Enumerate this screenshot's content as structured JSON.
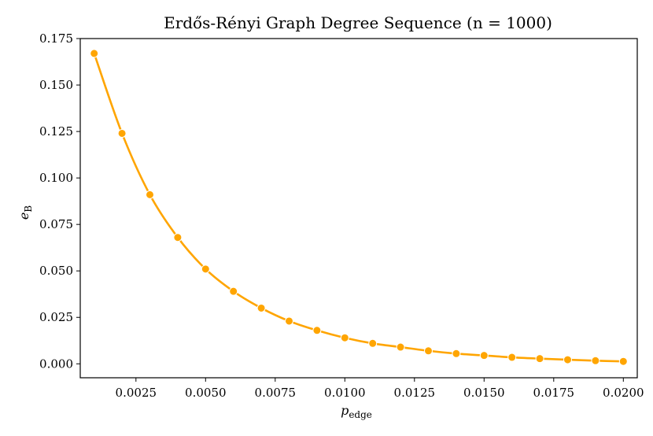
{
  "chart_data": {
    "type": "line",
    "title": "Erdős-Rényi Graph Degree Sequence (n = 1000)",
    "xlabel": "p_edge",
    "ylabel": "e_B",
    "xlim": [
      0.0005,
      0.0205
    ],
    "ylim": [
      -0.0075,
      0.175
    ],
    "xticks": [
      "0.0025",
      "0.0050",
      "0.0075",
      "0.0100",
      "0.0125",
      "0.0150",
      "0.0175",
      "0.0200"
    ],
    "yticks": [
      "0.000",
      "0.025",
      "0.050",
      "0.075",
      "0.100",
      "0.125",
      "0.150",
      "0.175"
    ],
    "grid": false,
    "legend": "none",
    "series": [
      {
        "color": "#FFA500",
        "marker": "circle",
        "x": [
          0.001,
          0.002,
          0.003,
          0.004,
          0.005,
          0.006,
          0.007,
          0.008,
          0.009,
          0.01,
          0.011,
          0.012,
          0.013,
          0.014,
          0.015,
          0.016,
          0.017,
          0.018,
          0.019,
          0.02
        ],
        "y": [
          0.167,
          0.124,
          0.091,
          0.068,
          0.051,
          0.039,
          0.03,
          0.023,
          0.018,
          0.014,
          0.011,
          0.009,
          0.007,
          0.0055,
          0.0045,
          0.0035,
          0.0028,
          0.0022,
          0.0017,
          0.0013
        ]
      }
    ]
  }
}
